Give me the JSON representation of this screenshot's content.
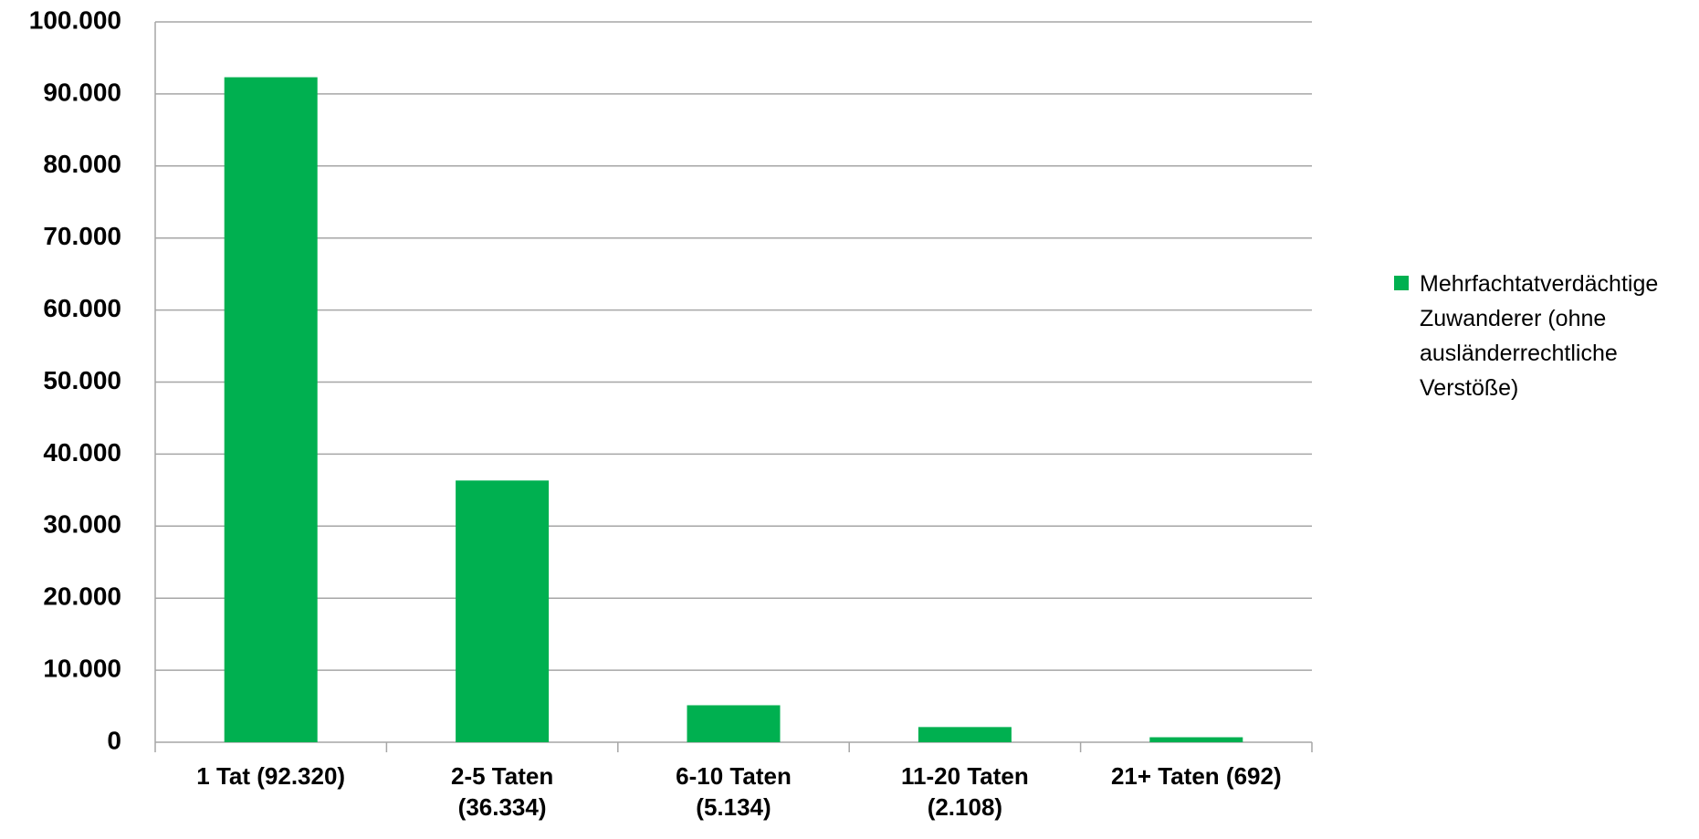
{
  "chart_data": {
    "type": "bar",
    "categories": [
      "1 Tat (92.320)",
      "2-5 Taten (36.334)",
      "6-10 Taten (5.134)",
      "11-20 Taten (2.108)",
      "21+ Taten (692)"
    ],
    "series": [
      {
        "name": "Mehrfachtatverdächtige Zuwanderer (ohne ausländerrechtliche Verstöße)",
        "color": "#00b050",
        "values": [
          92320,
          36334,
          5134,
          2108,
          692
        ]
      }
    ],
    "ylim": [
      0,
      100000
    ],
    "yticks": [
      0,
      {
        "value": 10000,
        "label": "10.000"
      },
      {
        "value": 20000,
        "label": "20.000"
      },
      {
        "value": 30000,
        "label": "30.000"
      },
      {
        "value": 40000,
        "label": "40.000"
      },
      {
        "value": 50000,
        "label": "50.000"
      },
      {
        "value": 60000,
        "label": "60.000"
      },
      {
        "value": 70000,
        "label": "70.000"
      },
      {
        "value": 80000,
        "label": "80.000"
      },
      {
        "value": 90000,
        "label": "90.000"
      },
      {
        "value": 100000,
        "label": "100.000"
      }
    ],
    "grid": true,
    "legend": "right"
  }
}
